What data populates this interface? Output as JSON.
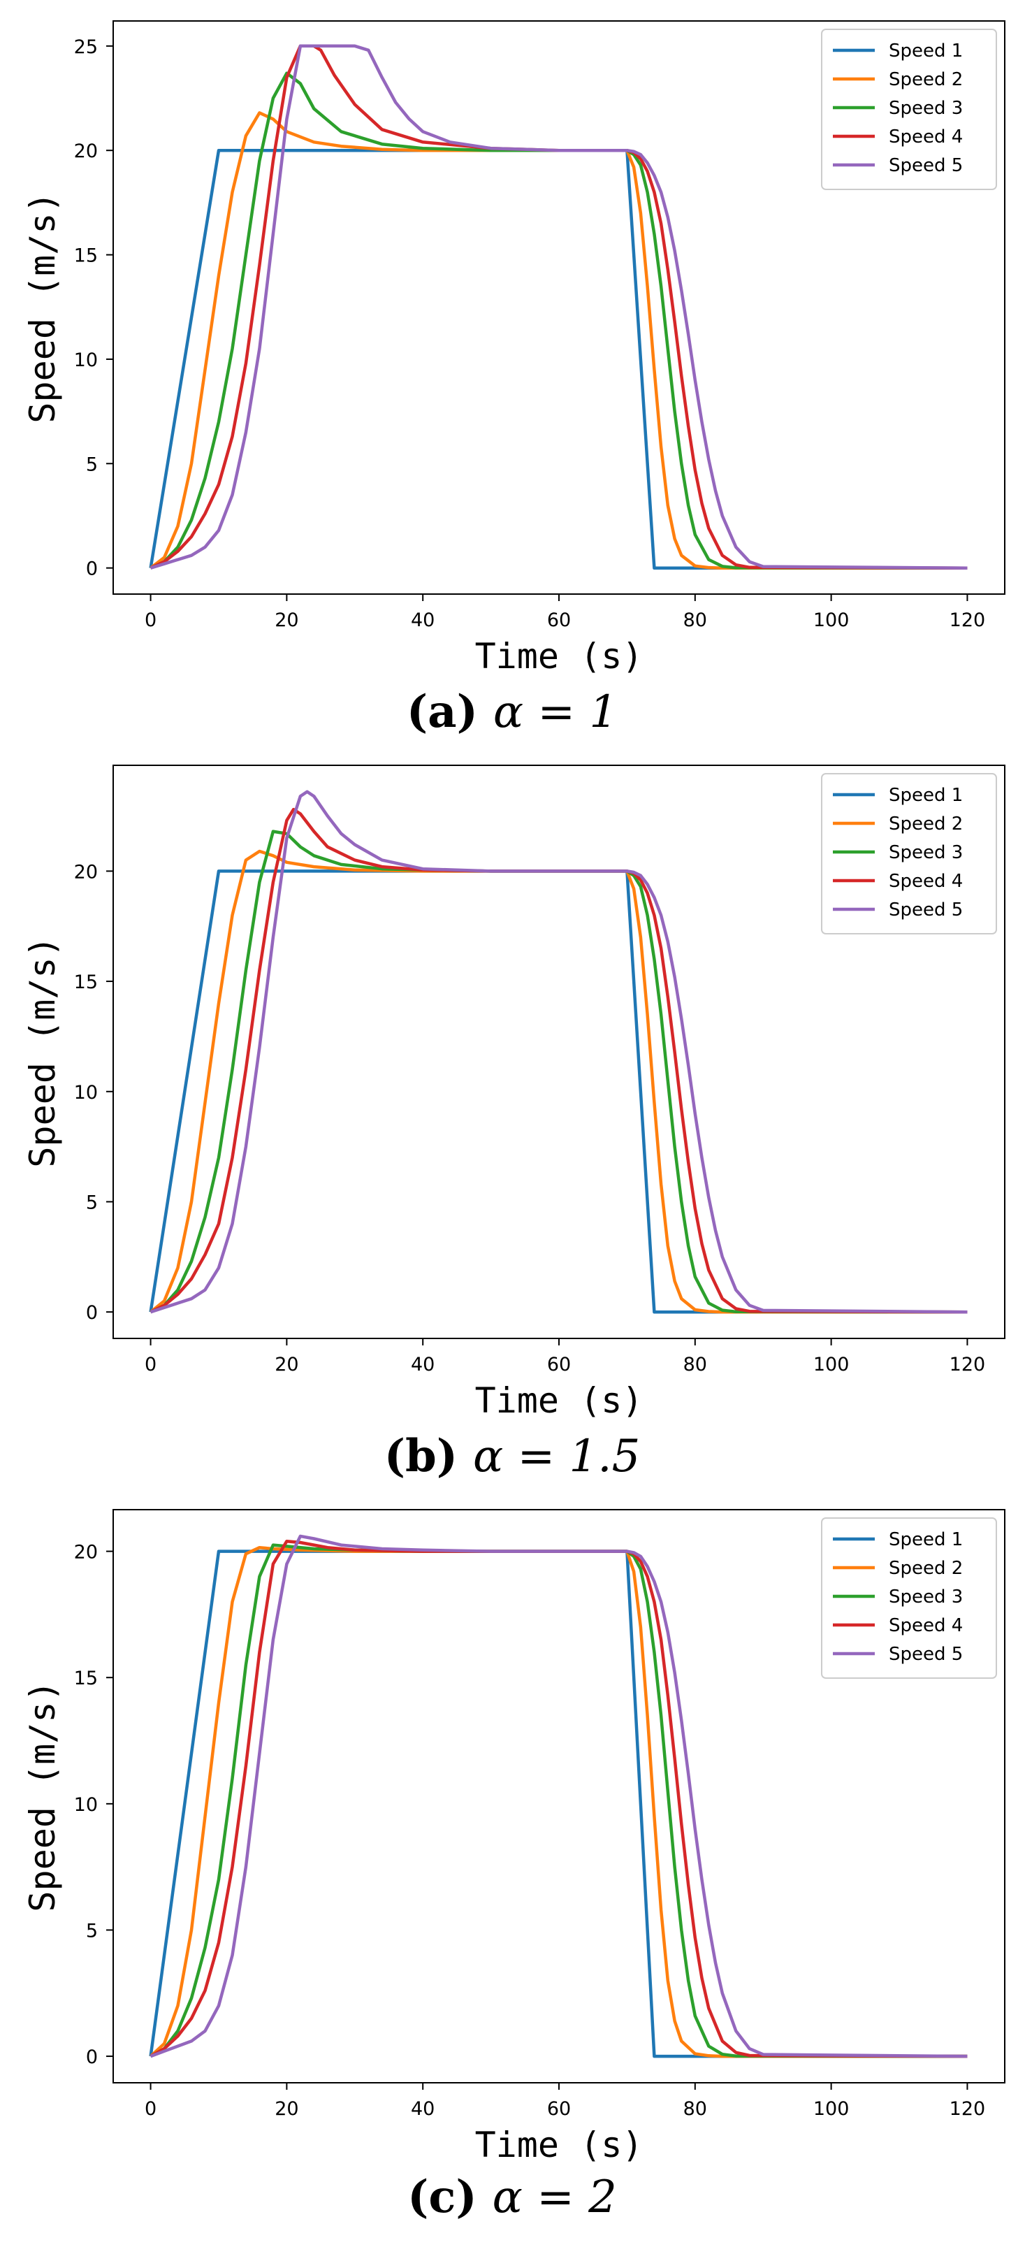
{
  "chart_data": [
    {
      "type": "line",
      "caption_letter": "(a)",
      "caption_math": "α = 1",
      "xlabel": "Time (s)",
      "ylabel": "Speed (m/s)",
      "xlim": [
        -5.5,
        125.5
      ],
      "ylim": [
        -1.25,
        26.2
      ],
      "xticks": [
        0,
        20,
        40,
        60,
        80,
        100,
        120
      ],
      "yticks": [
        0,
        5,
        10,
        15,
        20,
        25
      ],
      "legend_position": "top-right",
      "colors": [
        "#1f77b4",
        "#ff7f0e",
        "#2ca02c",
        "#d62728",
        "#9467bd"
      ],
      "series": [
        {
          "name": "Speed 1",
          "x": [
            0,
            10,
            70,
            74,
            120
          ],
          "y": [
            0,
            20,
            20,
            0,
            0
          ]
        },
        {
          "name": "Speed 2",
          "x": [
            0,
            2,
            4,
            6,
            8,
            10,
            12,
            14,
            16,
            18,
            20,
            24,
            28,
            34,
            40,
            50,
            60,
            70,
            71,
            72,
            73,
            74,
            75,
            76,
            77,
            78,
            80,
            82,
            84,
            120
          ],
          "y": [
            0,
            0.5,
            2,
            5,
            9.5,
            14,
            18,
            20.7,
            21.8,
            21.5,
            20.9,
            20.4,
            20.2,
            20.05,
            20,
            20,
            20,
            20,
            19.2,
            17,
            13.5,
            9.5,
            5.8,
            3,
            1.4,
            0.6,
            0.1,
            0.02,
            0,
            0
          ]
        },
        {
          "name": "Speed 3",
          "x": [
            0,
            2,
            4,
            6,
            8,
            10,
            12,
            14,
            16,
            18,
            20,
            22,
            24,
            28,
            34,
            40,
            50,
            60,
            70,
            71,
            72,
            73,
            74,
            75,
            76,
            77,
            78,
            79,
            80,
            82,
            84,
            86,
            120
          ],
          "y": [
            0,
            0.3,
            1,
            2.3,
            4.3,
            7,
            10.5,
            15,
            19.5,
            22.5,
            23.7,
            23.2,
            22,
            20.9,
            20.3,
            20.1,
            20,
            20,
            20,
            19.8,
            19.3,
            18,
            16,
            13.5,
            10.5,
            7.5,
            5,
            3,
            1.6,
            0.4,
            0.08,
            0.01,
            0
          ]
        },
        {
          "name": "Speed 4",
          "x": [
            0,
            2,
            4,
            6,
            8,
            10,
            12,
            14,
            16,
            18,
            20,
            22,
            24,
            25,
            27,
            30,
            34,
            40,
            50,
            60,
            70,
            71,
            72,
            73,
            74,
            75,
            76,
            77,
            78,
            79,
            80,
            81,
            82,
            84,
            86,
            88,
            120
          ],
          "y": [
            0,
            0.3,
            0.8,
            1.5,
            2.6,
            4,
            6.3,
            9.8,
            14.5,
            19.5,
            23.5,
            25,
            25,
            24.8,
            23.6,
            22.2,
            21,
            20.4,
            20.1,
            20,
            20,
            19.9,
            19.6,
            19,
            18,
            16.5,
            14.3,
            11.8,
            9.2,
            6.8,
            4.7,
            3.1,
            1.9,
            0.6,
            0.15,
            0.03,
            0
          ]
        },
        {
          "name": "Speed 5",
          "x": [
            0,
            2,
            4,
            6,
            8,
            10,
            12,
            14,
            16,
            18,
            20,
            22,
            24,
            26,
            28,
            30,
            32,
            34,
            36,
            38,
            40,
            44,
            50,
            60,
            70,
            71,
            72,
            73,
            74,
            75,
            76,
            77,
            78,
            79,
            80,
            81,
            82,
            83,
            84,
            86,
            88,
            90,
            120
          ],
          "y": [
            0,
            0.2,
            0.4,
            0.6,
            1,
            1.8,
            3.5,
            6.5,
            10.5,
            16,
            21.5,
            25,
            25,
            25,
            25,
            25,
            24.8,
            23.5,
            22.3,
            21.5,
            20.9,
            20.4,
            20.1,
            20,
            20,
            19.95,
            19.8,
            19.4,
            18.8,
            18,
            16.8,
            15.2,
            13.3,
            11.2,
            9,
            7,
            5.2,
            3.7,
            2.5,
            1,
            0.3,
            0.07,
            0
          ]
        }
      ]
    },
    {
      "type": "line",
      "caption_letter": "(b)",
      "caption_math": "α = 1.5",
      "xlabel": "Time (s)",
      "ylabel": "Speed (m/s)",
      "xlim": [
        -5.5,
        125.5
      ],
      "ylim": [
        -1.2,
        24.8
      ],
      "xticks": [
        0,
        20,
        40,
        60,
        80,
        100,
        120
      ],
      "yticks": [
        0,
        5,
        10,
        15,
        20
      ],
      "legend_position": "top-right",
      "colors": [
        "#1f77b4",
        "#ff7f0e",
        "#2ca02c",
        "#d62728",
        "#9467bd"
      ],
      "series": [
        {
          "name": "Speed 1",
          "x": [
            0,
            10,
            70,
            74,
            120
          ],
          "y": [
            0,
            20,
            20,
            0,
            0
          ]
        },
        {
          "name": "Speed 2",
          "x": [
            0,
            2,
            4,
            6,
            8,
            10,
            12,
            14,
            16,
            18,
            20,
            24,
            30,
            40,
            50,
            60,
            70,
            71,
            72,
            73,
            74,
            75,
            76,
            77,
            78,
            80,
            82,
            84,
            120
          ],
          "y": [
            0,
            0.5,
            2,
            5,
            9.5,
            14,
            18,
            20.5,
            20.9,
            20.7,
            20.4,
            20.2,
            20.05,
            20,
            20,
            20,
            20,
            19.2,
            17,
            13.5,
            9.5,
            5.8,
            3,
            1.4,
            0.6,
            0.1,
            0.02,
            0,
            0
          ]
        },
        {
          "name": "Speed 3",
          "x": [
            0,
            2,
            4,
            6,
            8,
            10,
            12,
            14,
            16,
            18,
            20,
            22,
            24,
            28,
            34,
            40,
            50,
            60,
            70,
            71,
            72,
            73,
            74,
            75,
            76,
            77,
            78,
            79,
            80,
            82,
            84,
            86,
            120
          ],
          "y": [
            0,
            0.3,
            1,
            2.3,
            4.3,
            7,
            11,
            15.5,
            19.5,
            21.8,
            21.7,
            21.1,
            20.7,
            20.3,
            20.1,
            20.05,
            20,
            20,
            20,
            19.8,
            19.3,
            18,
            16,
            13.5,
            10.5,
            7.5,
            5,
            3,
            1.6,
            0.4,
            0.08,
            0.01,
            0
          ]
        },
        {
          "name": "Speed 4",
          "x": [
            0,
            2,
            4,
            6,
            8,
            10,
            12,
            14,
            16,
            18,
            20,
            21,
            22,
            24,
            26,
            30,
            34,
            40,
            50,
            60,
            70,
            71,
            72,
            73,
            74,
            75,
            76,
            77,
            78,
            79,
            80,
            81,
            82,
            84,
            86,
            88,
            120
          ],
          "y": [
            0,
            0.3,
            0.8,
            1.5,
            2.6,
            4,
            7,
            11,
            15.5,
            19.5,
            22.3,
            22.8,
            22.6,
            21.8,
            21.1,
            20.5,
            20.2,
            20.05,
            20,
            20,
            20,
            19.9,
            19.6,
            19,
            18,
            16.5,
            14.3,
            11.8,
            9.2,
            6.8,
            4.7,
            3.1,
            1.9,
            0.6,
            0.15,
            0.03,
            0
          ]
        },
        {
          "name": "Speed 5",
          "x": [
            0,
            2,
            4,
            6,
            8,
            10,
            12,
            14,
            16,
            18,
            20,
            22,
            23,
            24,
            26,
            28,
            30,
            34,
            40,
            50,
            60,
            70,
            71,
            72,
            73,
            74,
            75,
            76,
            77,
            78,
            79,
            80,
            81,
            82,
            83,
            84,
            86,
            88,
            90,
            120
          ],
          "y": [
            0,
            0.2,
            0.4,
            0.6,
            1,
            2,
            4,
            7.5,
            12,
            17,
            21.5,
            23.4,
            23.6,
            23.4,
            22.5,
            21.7,
            21.2,
            20.5,
            20.1,
            20,
            20,
            20,
            19.95,
            19.8,
            19.4,
            18.8,
            18,
            16.8,
            15.2,
            13.3,
            11.2,
            9,
            7,
            5.2,
            3.7,
            2.5,
            1,
            0.3,
            0.07,
            0
          ]
        }
      ]
    },
    {
      "type": "line",
      "caption_letter": "(c)",
      "caption_math": "α = 2",
      "xlabel": "Time (s)",
      "ylabel": "Speed (m/s)",
      "xlim": [
        -5.5,
        125.5
      ],
      "ylim": [
        -1.05,
        21.65
      ],
      "xticks": [
        0,
        20,
        40,
        60,
        80,
        100,
        120
      ],
      "yticks": [
        0,
        5,
        10,
        15,
        20
      ],
      "legend_position": "top-right",
      "colors": [
        "#1f77b4",
        "#ff7f0e",
        "#2ca02c",
        "#d62728",
        "#9467bd"
      ],
      "series": [
        {
          "name": "Speed 1",
          "x": [
            0,
            10,
            70,
            74,
            120
          ],
          "y": [
            0,
            20,
            20,
            0,
            0
          ]
        },
        {
          "name": "Speed 2",
          "x": [
            0,
            2,
            4,
            6,
            8,
            10,
            12,
            14,
            16,
            18,
            22,
            30,
            40,
            50,
            60,
            70,
            71,
            72,
            73,
            74,
            75,
            76,
            77,
            78,
            80,
            82,
            84,
            120
          ],
          "y": [
            0,
            0.5,
            2,
            5,
            9.5,
            14,
            18,
            19.9,
            20.15,
            20.1,
            20.05,
            20,
            20,
            20,
            20,
            20,
            19.2,
            17,
            13.5,
            9.5,
            5.8,
            3,
            1.4,
            0.6,
            0.1,
            0.02,
            0,
            0
          ]
        },
        {
          "name": "Speed 3",
          "x": [
            0,
            2,
            4,
            6,
            8,
            10,
            12,
            14,
            16,
            18,
            20,
            24,
            30,
            40,
            50,
            60,
            70,
            71,
            72,
            73,
            74,
            75,
            76,
            77,
            78,
            79,
            80,
            82,
            84,
            86,
            120
          ],
          "y": [
            0,
            0.3,
            1,
            2.3,
            4.3,
            7,
            11,
            15.5,
            19,
            20.25,
            20.2,
            20.1,
            20.05,
            20,
            20,
            20,
            20,
            19.8,
            19.3,
            18,
            16,
            13.5,
            10.5,
            7.5,
            5,
            3,
            1.6,
            0.4,
            0.08,
            0.01,
            0
          ]
        },
        {
          "name": "Speed 4",
          "x": [
            0,
            2,
            4,
            6,
            8,
            10,
            12,
            14,
            16,
            18,
            20,
            22,
            26,
            30,
            40,
            50,
            60,
            70,
            71,
            72,
            73,
            74,
            75,
            76,
            77,
            78,
            79,
            80,
            81,
            82,
            84,
            86,
            88,
            120
          ],
          "y": [
            0,
            0.3,
            0.8,
            1.5,
            2.6,
            4.5,
            7.5,
            11.5,
            16,
            19.5,
            20.4,
            20.35,
            20.15,
            20.05,
            20,
            20,
            20,
            20,
            19.9,
            19.6,
            19,
            18,
            16.5,
            14.3,
            11.8,
            9.2,
            6.8,
            4.7,
            3.1,
            1.9,
            0.6,
            0.15,
            0.03,
            0
          ]
        },
        {
          "name": "Speed 5",
          "x": [
            0,
            2,
            4,
            6,
            8,
            10,
            12,
            14,
            16,
            18,
            20,
            22,
            24,
            28,
            34,
            40,
            50,
            60,
            70,
            71,
            72,
            73,
            74,
            75,
            76,
            77,
            78,
            79,
            80,
            81,
            82,
            83,
            84,
            86,
            88,
            90,
            120
          ],
          "y": [
            0,
            0.2,
            0.4,
            0.6,
            1,
            2,
            4,
            7.5,
            12,
            16.5,
            19.5,
            20.6,
            20.5,
            20.25,
            20.1,
            20.05,
            20,
            20,
            20,
            19.95,
            19.8,
            19.4,
            18.8,
            18,
            16.8,
            15.2,
            13.3,
            11.2,
            9,
            7,
            5.2,
            3.7,
            2.5,
            1,
            0.3,
            0.07,
            0
          ]
        }
      ]
    }
  ]
}
